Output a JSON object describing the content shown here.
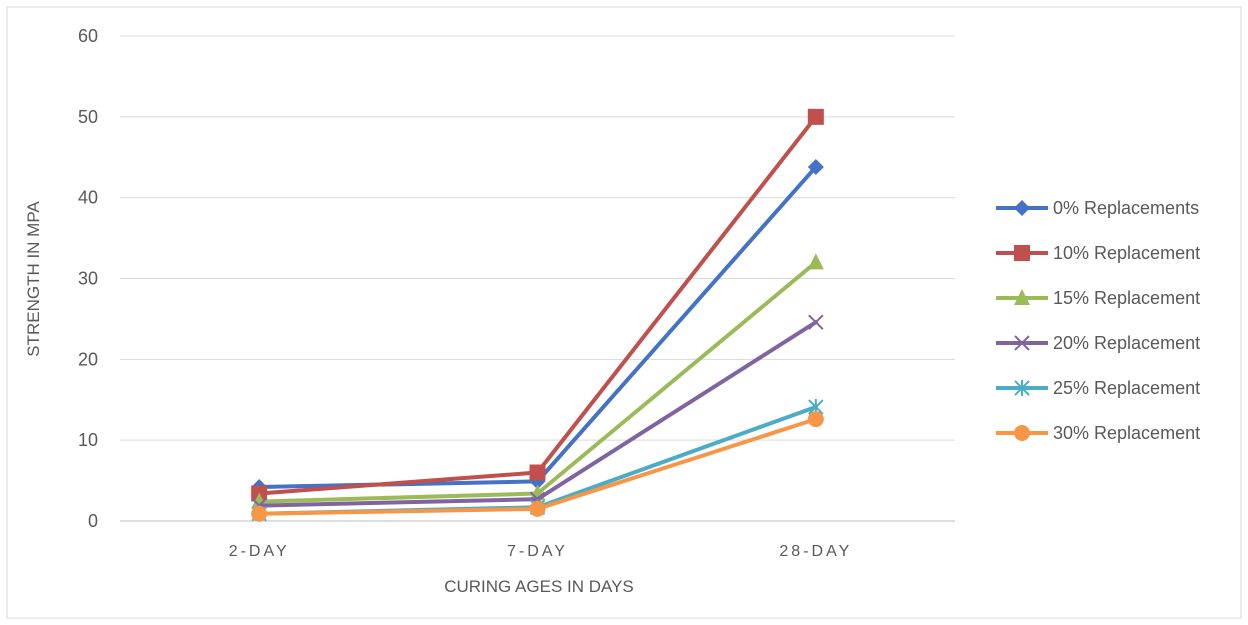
{
  "chart_data": {
    "type": "line",
    "categories": [
      "2-DAY",
      "7-DAY",
      "28-DAY"
    ],
    "xlabel": "CURING AGES IN DAYS",
    "ylabel": "STRENGTH IN MPA",
    "ylim": [
      0,
      60
    ],
    "yticks": [
      0,
      10,
      20,
      30,
      40,
      50,
      60
    ],
    "grid": true,
    "legend_position": "right",
    "series": [
      {
        "name": "0% Replacements",
        "values": [
          4.2,
          4.9,
          43.8
        ],
        "color": "#4472C4",
        "marker": "diamond"
      },
      {
        "name": "10% Replacement",
        "values": [
          3.4,
          6.0,
          50.0
        ],
        "color": "#C0504D",
        "marker": "square"
      },
      {
        "name": "15% Replacement",
        "values": [
          2.4,
          3.4,
          32.0
        ],
        "color": "#9BBB59",
        "marker": "triangle"
      },
      {
        "name": "20% Replacement",
        "values": [
          1.9,
          2.7,
          24.6
        ],
        "color": "#8064A2",
        "marker": "x"
      },
      {
        "name": "25% Replacement",
        "values": [
          0.9,
          1.7,
          14.1
        ],
        "color": "#4BACC6",
        "marker": "star"
      },
      {
        "name": "30% Replacement",
        "values": [
          0.9,
          1.5,
          12.6
        ],
        "color": "#F79646",
        "marker": "circle"
      }
    ]
  }
}
